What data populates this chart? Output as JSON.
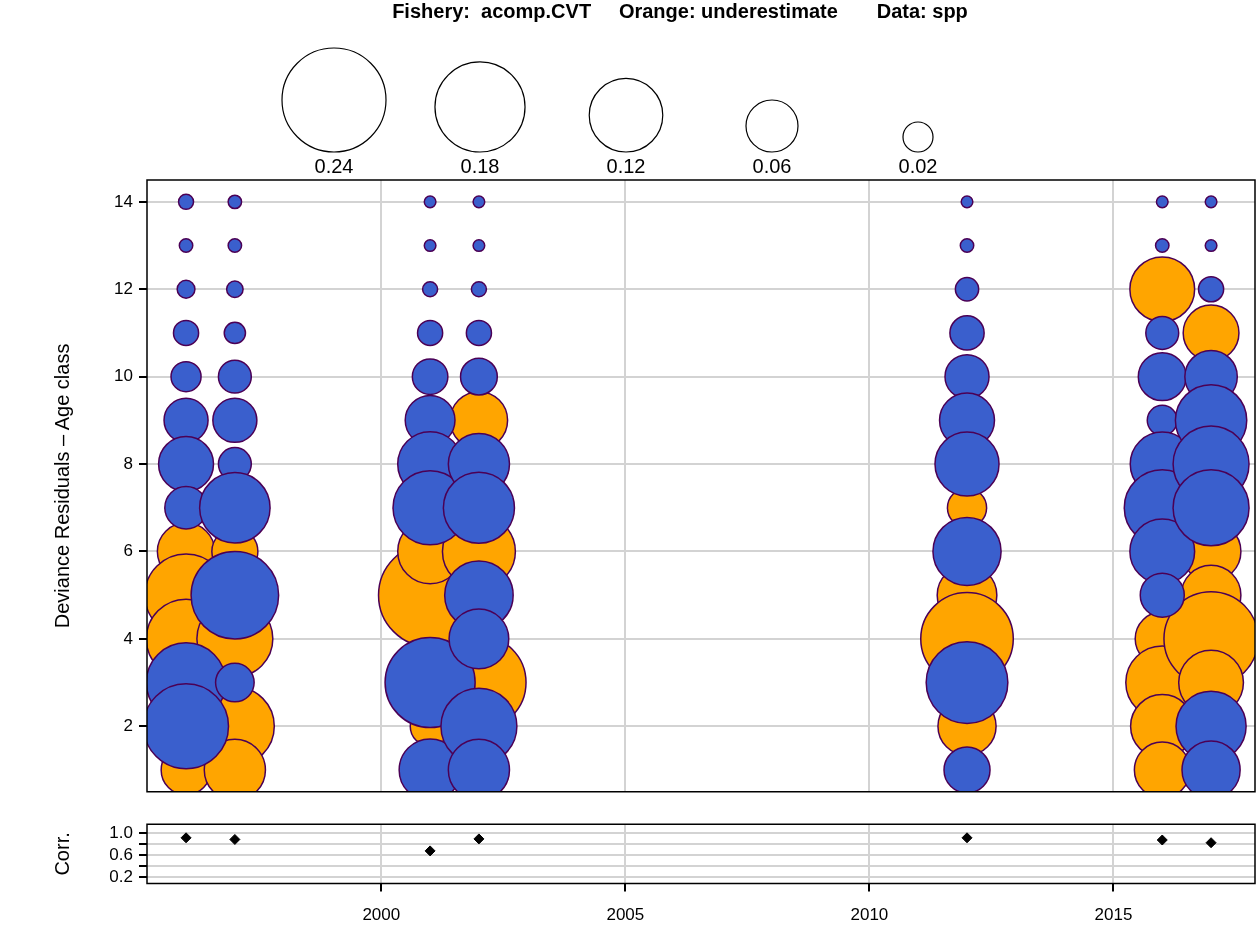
{
  "chart_data": [
    {
      "type": "bubble",
      "title": "Fishery:  acomp.CVT     Orange: underestimate       Data: spp",
      "ylabel": "Deviance Residuals – Age class",
      "xlim": [
        1995.2,
        2017.9
      ],
      "xticks": [
        2000,
        2005,
        2010,
        2015
      ],
      "ylim": [
        0.5,
        14.5
      ],
      "yticks": [
        2,
        4,
        6,
        8,
        10,
        12,
        14
      ],
      "grid": true,
      "tick_labels": "y",
      "size_legend": [
        0.24,
        0.18,
        0.12,
        0.06,
        0.02
      ],
      "series": [
        {
          "color": "#3a5fcd",
          "x": [
            1996,
            1996,
            1996,
            1996,
            1996,
            1996,
            1996,
            1996,
            1996,
            1996,
            1997,
            1997,
            1997,
            1997,
            1997,
            1997,
            1997,
            1997,
            1997,
            1997,
            2001,
            2001,
            2001,
            2001,
            2001,
            2001,
            2001,
            2001,
            2001,
            2001,
            2002,
            2002,
            2002,
            2002,
            2002,
            2002,
            2002,
            2002,
            2002,
            2002,
            2002,
            2012,
            2012,
            2012,
            2012,
            2012,
            2012,
            2012,
            2012,
            2012,
            2012,
            2016,
            2016,
            2016,
            2016,
            2016,
            2016,
            2016,
            2016,
            2016,
            2017,
            2017,
            2017,
            2017,
            2017,
            2017,
            2017,
            2017,
            2017
          ],
          "values": [
            14,
            13,
            12,
            11,
            10,
            9,
            8,
            7,
            3,
            2,
            14,
            13,
            12,
            11,
            10,
            9,
            8,
            7,
            5,
            3,
            14,
            13,
            12,
            11,
            10,
            9,
            8,
            7,
            3,
            1,
            14,
            13,
            12,
            11,
            10,
            8,
            7,
            5,
            4,
            2,
            1,
            14,
            13,
            12,
            11,
            10,
            9,
            8,
            6,
            3,
            1,
            14,
            13,
            11,
            10,
            9,
            8,
            7,
            6,
            5,
            14,
            13,
            12,
            10,
            9,
            8,
            7,
            2,
            1
          ],
          "sizes": [
            0.005,
            0.004,
            0.007,
            0.014,
            0.02,
            0.043,
            0.067,
            0.04,
            0.14,
            0.16,
            0.004,
            0.004,
            0.006,
            0.01,
            0.024,
            0.043,
            0.024,
            0.11,
            0.17,
            0.033,
            0.003,
            0.003,
            0.005,
            0.014,
            0.028,
            0.055,
            0.093,
            0.122,
            0.18,
            0.085,
            0.003,
            0.003,
            0.005,
            0.014,
            0.03,
            0.083,
            0.112,
            0.104,
            0.079,
            0.128,
            0.083,
            0.003,
            0.004,
            0.012,
            0.026,
            0.043,
            0.067,
            0.091,
            0.103,
            0.148,
            0.047,
            0.003,
            0.004,
            0.024,
            0.051,
            0.02,
            0.091,
            0.128,
            0.093,
            0.043,
            0.003,
            0.003,
            0.014,
            0.061,
            0.113,
            0.128,
            0.128,
            0.109,
            0.075
          ]
        },
        {
          "color": "#ffa500",
          "x": [
            1996,
            1996,
            1996,
            1996,
            1997,
            1997,
            1997,
            1997,
            2001,
            2001,
            2001,
            2002,
            2002,
            2002,
            2012,
            2012,
            2012,
            2012,
            2016,
            2016,
            2016,
            2016,
            2016,
            2017,
            2017,
            2017,
            2017,
            2017
          ],
          "values": [
            6,
            5,
            4,
            1,
            6,
            4,
            2,
            1,
            5,
            6,
            2,
            9,
            6,
            3,
            7,
            5,
            4,
            2,
            12,
            4,
            3,
            2,
            1,
            11,
            6,
            5,
            4,
            3
          ],
          "sizes": [
            0.073,
            0.15,
            0.14,
            0.055,
            0.047,
            0.128,
            0.138,
            0.083,
            0.236,
            0.093,
            0.035,
            0.073,
            0.118,
            0.197,
            0.034,
            0.079,
            0.19,
            0.075,
            0.093,
            0.065,
            0.118,
            0.089,
            0.069,
            0.069,
            0.079,
            0.079,
            0.197,
            0.093
          ]
        }
      ]
    },
    {
      "type": "scatter",
      "ylabel": "Corr.",
      "xlim": [
        1995.2,
        2017.9
      ],
      "xticks": [
        2000,
        2005,
        2010,
        2015
      ],
      "ylim": [
        0.08,
        1.17
      ],
      "yticks": [
        {
          "value": 1,
          "label": "1.0"
        },
        {
          "value": 0.8,
          "label": null
        },
        0.6,
        {
          "value": 0.4,
          "label": null
        },
        0.2
      ],
      "grid": true,
      "marker": "diamond",
      "series": [
        {
          "color": "#000000",
          "x": [
            1996,
            1997,
            2001,
            2002,
            2012,
            2016,
            2017
          ],
          "values": [
            0.92,
            0.89,
            0.68,
            0.9,
            0.92,
            0.88,
            0.83
          ]
        }
      ]
    }
  ]
}
